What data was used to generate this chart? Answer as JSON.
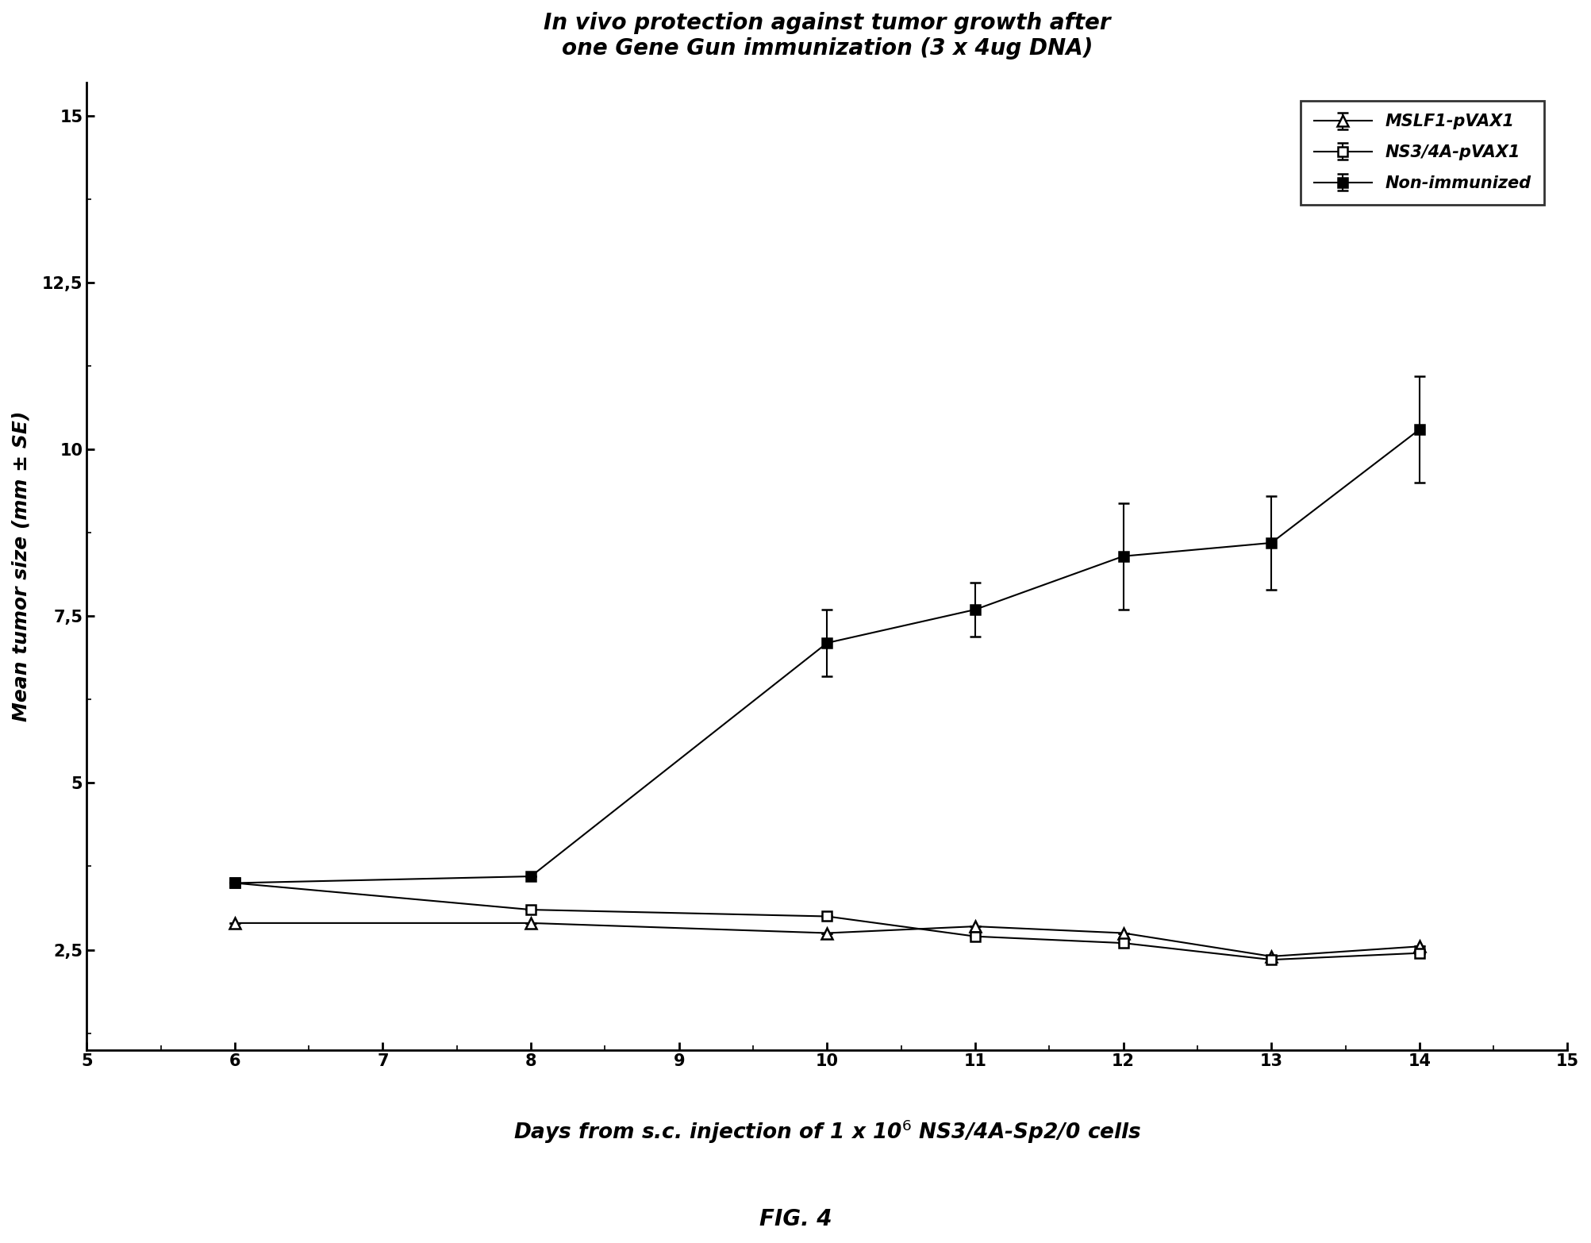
{
  "title_line1": "In vivo protection against tumor growth after",
  "title_line2": "one Gene Gun immunization (3 x 4ug DNA)",
  "ylabel": "Mean tumor size (mm ± SE)",
  "fig_label": "FIG. 4",
  "xlim": [
    5,
    15
  ],
  "ylim": [
    1.0,
    15.5
  ],
  "xticks": [
    5,
    6,
    7,
    8,
    9,
    10,
    11,
    12,
    13,
    14,
    15
  ],
  "ytick_positions": [
    2.5,
    5.0,
    7.5,
    10.0,
    12.5,
    15.0
  ],
  "ytick_labels": [
    "2,5",
    "5",
    "7,5",
    "10",
    "12,5",
    "15"
  ],
  "series": [
    {
      "label": "MSLF1-pVAX1",
      "x": [
        6,
        8,
        10,
        11,
        12,
        13,
        14
      ],
      "y": [
        2.9,
        2.9,
        2.75,
        2.85,
        2.75,
        2.4,
        2.55
      ],
      "yerr": [
        0.0,
        0.0,
        0.0,
        0.0,
        0.0,
        0.0,
        0.0
      ],
      "marker": "^",
      "markersize": 10,
      "markerfacecolor": "white",
      "markeredgecolor": "black",
      "linecolor": "black",
      "linewidth": 1.5
    },
    {
      "label": "NS3/4A-pVAX1",
      "x": [
        6,
        8,
        10,
        11,
        12,
        13,
        14
      ],
      "y": [
        3.5,
        3.1,
        3.0,
        2.7,
        2.6,
        2.35,
        2.45
      ],
      "yerr": [
        0.0,
        0.0,
        0.0,
        0.0,
        0.0,
        0.0,
        0.0
      ],
      "marker": "s",
      "markersize": 9,
      "markerfacecolor": "white",
      "markeredgecolor": "black",
      "linecolor": "black",
      "linewidth": 1.5
    },
    {
      "label": "Non-immunized",
      "x": [
        6,
        8,
        10,
        11,
        12,
        13,
        14
      ],
      "y": [
        3.5,
        3.6,
        7.1,
        7.6,
        8.4,
        8.6,
        10.3
      ],
      "yerr": [
        0.0,
        0.0,
        0.5,
        0.4,
        0.8,
        0.7,
        0.8
      ],
      "marker": "s",
      "markersize": 9,
      "markerfacecolor": "black",
      "markeredgecolor": "black",
      "linecolor": "black",
      "linewidth": 1.5
    }
  ],
  "background_color": "#ffffff",
  "legend_fontsize": 15,
  "title_fontsize": 20,
  "axis_label_fontsize": 18,
  "tick_fontsize": 15
}
